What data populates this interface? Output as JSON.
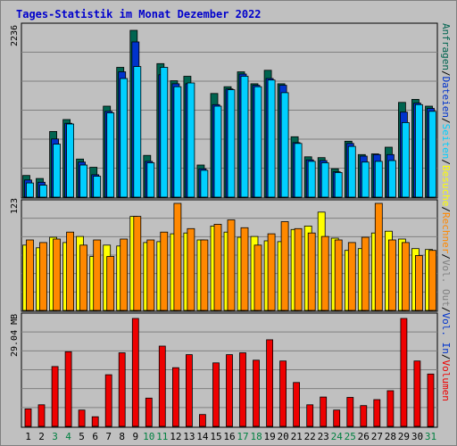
{
  "title": "Tages-Statistik im Monat Dezember 2022",
  "colors": {
    "background": "#c0c0c0",
    "title": "#0000cc",
    "anfragen": "#006450",
    "dateien": "#0033cc",
    "seiten": "#00cfff",
    "besuche": "#ffff00",
    "rechner": "#ff8800",
    "volumen": "#ee0000",
    "weekend_label": "#008040",
    "weekday_label": "#000000"
  },
  "side_legend": {
    "top": [
      "Anfragen",
      "/",
      "Dateien",
      "/",
      "Seiten",
      "/",
      "Besuche",
      "/",
      "Rechner",
      "/",
      "Vol. Out",
      "/",
      "Vol. In",
      "/",
      "Volumen"
    ],
    "top_colors": [
      "#006450",
      "#000000",
      "#0033cc",
      "#000000",
      "#00cfff",
      "#000000",
      "#ffff00",
      "#000000",
      "#ff8800",
      "#000000",
      "#808080",
      "#000000",
      "#0033cc",
      "#000000",
      "#ee0000"
    ]
  },
  "chart_data": {
    "type": "bar",
    "categories": [
      "1",
      "2",
      "3",
      "4",
      "5",
      "6",
      "7",
      "8",
      "9",
      "10",
      "11",
      "12",
      "13",
      "14",
      "15",
      "16",
      "17",
      "18",
      "19",
      "20",
      "21",
      "22",
      "23",
      "24",
      "25",
      "26",
      "27",
      "28",
      "29",
      "30",
      "31"
    ],
    "weekend_days": [
      "3",
      "4",
      "10",
      "11",
      "17",
      "18",
      "24",
      "25",
      "31"
    ],
    "panels": [
      {
        "name": "requests",
        "ymax_label": "2236",
        "ylim": [
          0,
          2236
        ],
        "series": [
          {
            "name": "Anfragen",
            "values": [
              290,
              250,
              880,
              1040,
              510,
              400,
              1220,
              1740,
              2236,
              560,
              1790,
              1560,
              1620,
              430,
              1390,
              1480,
              1680,
              1520,
              1700,
              1520,
              810,
              540,
              530,
              380,
              750,
              570,
              580,
              670,
              1270,
              1310,
              1220
            ]
          },
          {
            "name": "Dateien",
            "values": [
              230,
              200,
              780,
              990,
              470,
              300,
              1150,
              1680,
              2080,
              480,
              1640,
              1520,
              1520,
              380,
              1240,
              1450,
              1650,
              1500,
              1590,
              1500,
              730,
              500,
              490,
              340,
              720,
              550,
              570,
              570,
              1140,
              1260,
              1190
            ]
          },
          {
            "name": "Seiten",
            "values": [
              190,
              160,
              710,
              980,
              430,
              280,
              1130,
              1590,
              1750,
              460,
              1740,
              1480,
              1530,
              360,
              1220,
              1440,
              1620,
              1480,
              1570,
              1400,
              720,
              480,
              460,
              330,
              680,
              470,
              480,
              490,
              1000,
              1240,
              1150
            ]
          }
        ]
      },
      {
        "name": "visits",
        "ymax_label": "123",
        "ylim": [
          0,
          123
        ],
        "series": [
          {
            "name": "Besuche",
            "values": [
              75,
              72,
              84,
              78,
              85,
              62,
              75,
              74,
              108,
              78,
              79,
              88,
              89,
              81,
              97,
              90,
              84,
              85,
              80,
              79,
              93,
              97,
              113,
              83,
              69,
              71,
              89,
              91,
              82,
              71,
              70
            ]
          },
          {
            "name": "Rechner",
            "values": [
              81,
              78,
              82,
              90,
              75,
              81,
              62,
              82,
              108,
              81,
              90,
              123,
              94,
              81,
              99,
              104,
              95,
              75,
              88,
              102,
              94,
              89,
              85,
              81,
              78,
              84,
              123,
              81,
              78,
              63,
              69
            ]
          }
        ]
      },
      {
        "name": "volume",
        "ymax_label": "29.04 MB",
        "ylim": [
          0,
          29.04
        ],
        "series": [
          {
            "name": "Volumen",
            "values": [
              4.7,
              5.8,
              16.1,
              20.1,
              4.4,
              2.6,
              13.9,
              19.8,
              29.04,
              7.6,
              21.6,
              15.8,
              19.3,
              3.2,
              17.1,
              19.3,
              19.8,
              17.8,
              23.3,
              17.6,
              11.8,
              5.8,
              7.9,
              4.4,
              7.8,
              5.6,
              7.2,
              9.6,
              29.04,
              17.6,
              14.1
            ]
          }
        ]
      }
    ]
  }
}
